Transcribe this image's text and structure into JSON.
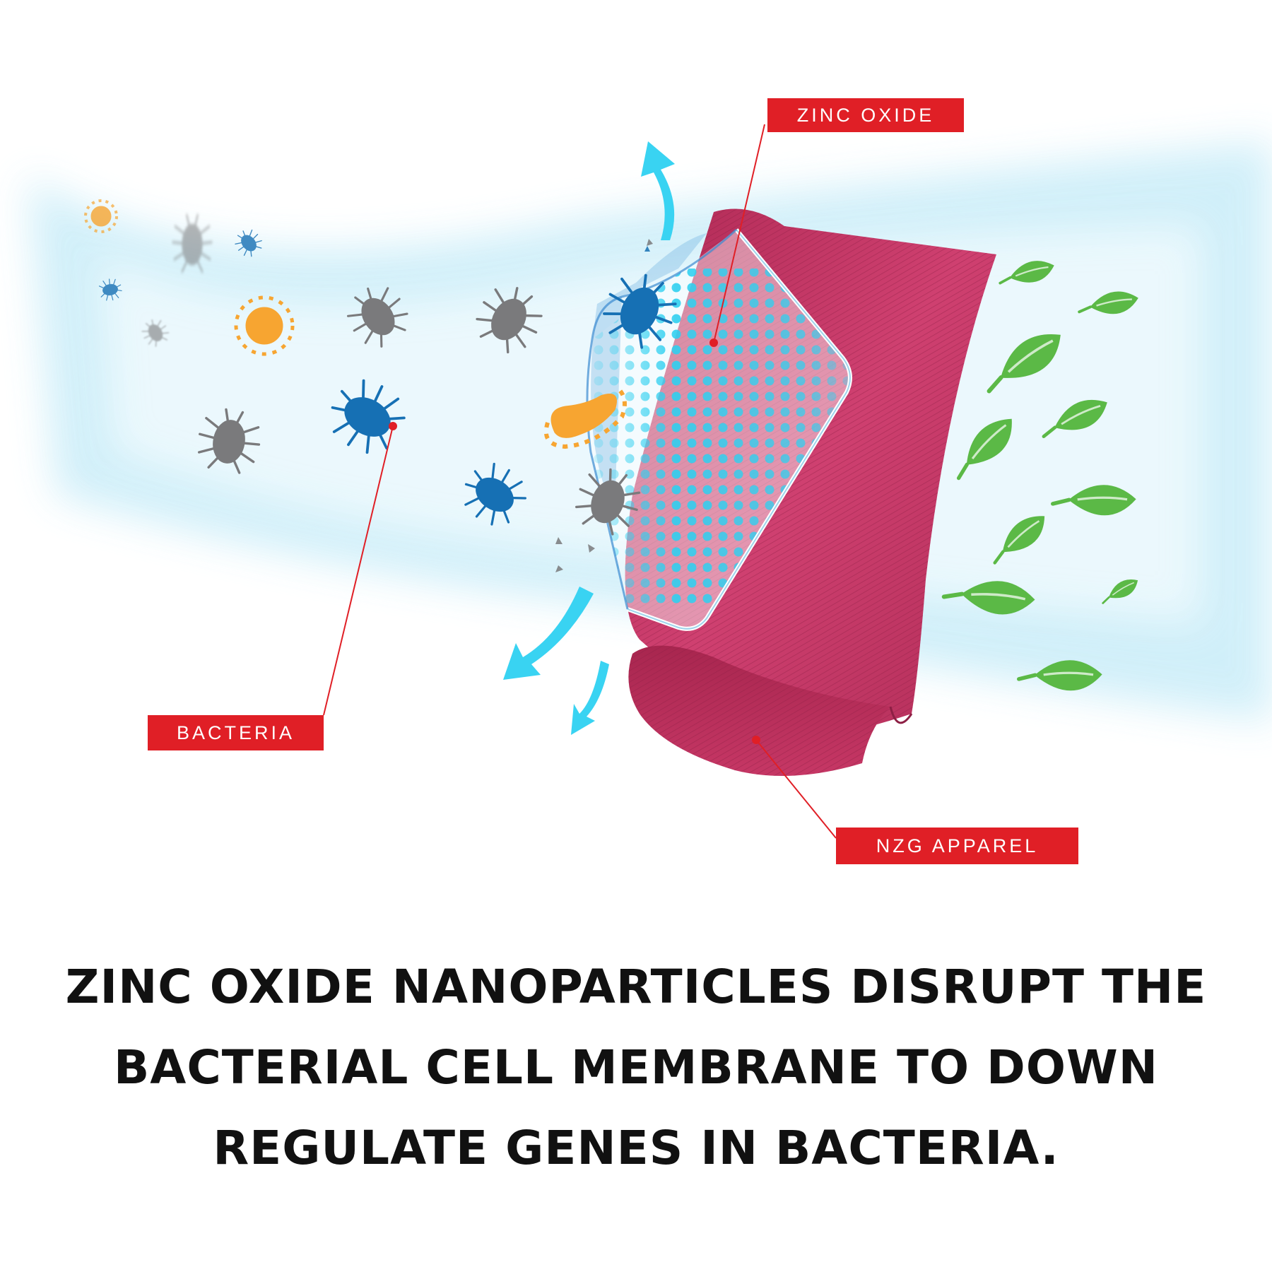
{
  "labels": {
    "zinc_oxide": "ZINC OXIDE",
    "bacteria": "BACTERIA",
    "apparel": "NZG APPAREL"
  },
  "headline": {
    "line1": "ZINC OXIDE NANOPARTICLES DISRUPT THE",
    "line2": "BACTERIAL CELL MEMBRANE TO DOWN",
    "line3": "REGULATE GENES IN BACTERIA."
  },
  "colors": {
    "label_bg": "#e01f26",
    "fabric": "#c2345e",
    "shield_dots": "#2fd0f0",
    "arrow": "#39d3f2",
    "bacteria_blue": "#1670b4",
    "bacteria_gray": "#7a7a7c",
    "bacteria_orange": "#f7a531",
    "leaf": "#5bb946"
  },
  "icons": [
    "bacteria-icon",
    "leaf-icon",
    "arrow-icon",
    "shield-icon",
    "fabric-icon"
  ]
}
